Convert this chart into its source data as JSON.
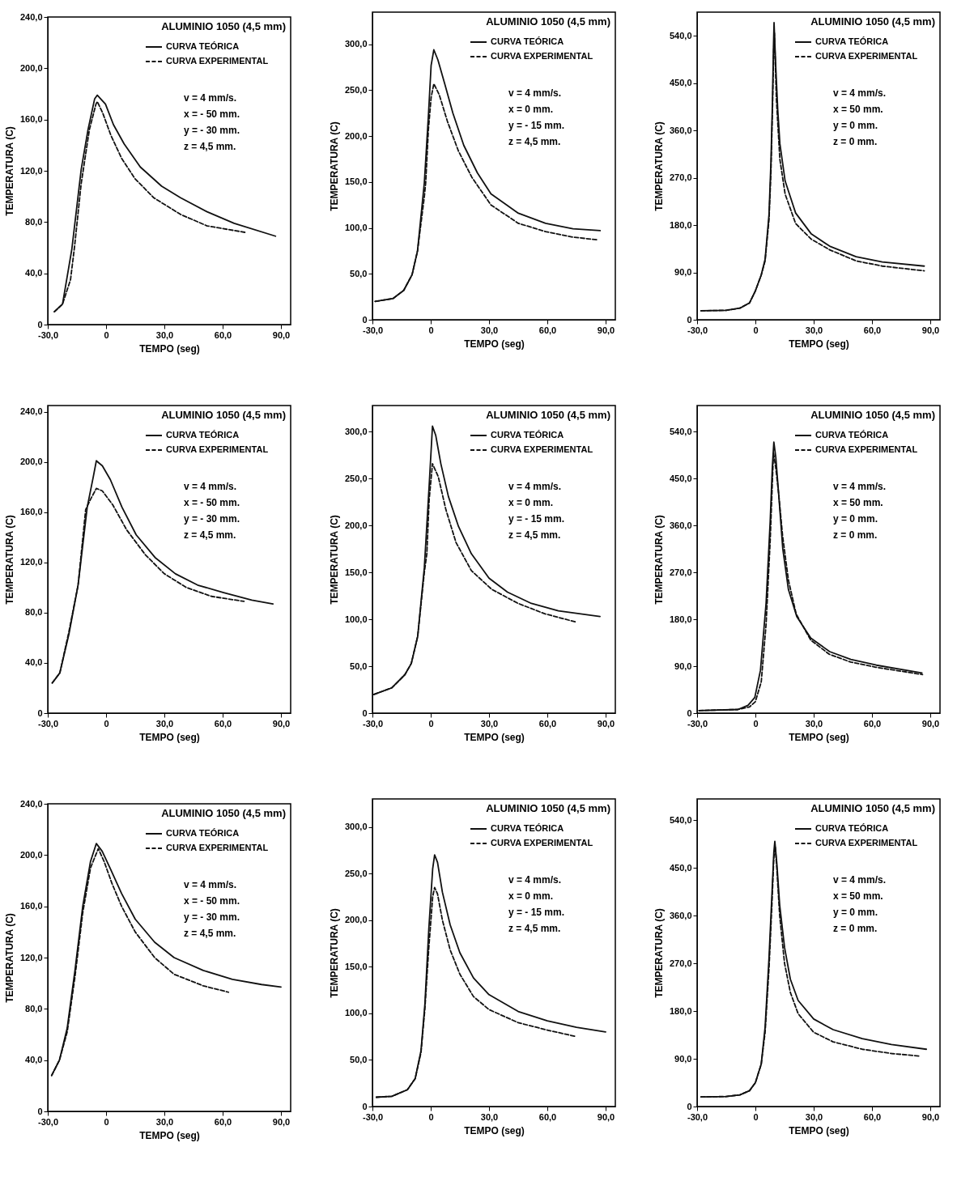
{
  "chart_data": [
    {
      "type": "line",
      "title": "ALUMINIO 1050 (4,5 mm)",
      "xlabel": "TEMPO (seg)",
      "ylabel": "TEMPERATURA (C)",
      "legend": "top right",
      "xlim": [
        -30,
        95
      ],
      "ylim": [
        0,
        240
      ],
      "xticks": [
        {
          "value": -30,
          "label": "-30,0"
        },
        {
          "value": 0,
          "label": "0"
        },
        {
          "value": 30,
          "label": "30,0"
        },
        {
          "value": 60,
          "label": "60,0"
        },
        {
          "value": 90,
          "label": "90,0"
        }
      ],
      "yticks": [
        {
          "value": 0,
          "label": "0"
        },
        {
          "value": 40,
          "label": "40,0"
        },
        {
          "value": 80,
          "label": "80,0"
        },
        {
          "value": 120,
          "label": "120,0"
        },
        {
          "value": 160,
          "label": "160,0"
        },
        {
          "value": 200,
          "label": "200,0"
        },
        {
          "value": 240,
          "label": "240,0"
        }
      ],
      "annotations": [
        "v = 4 mm/s.",
        "x = - 50 mm.",
        "y = - 30 mm.",
        "z = 4,5 mm."
      ],
      "series": [
        {
          "name": "CURVA TEÓRICA",
          "color": "#111111",
          "line_style": "solid",
          "x": [
            -26.6,
            -22.4,
            -17.6,
            -12.8,
            -9.3,
            -5.9,
            -4.5,
            -0.3,
            3.8,
            9.3,
            17.6,
            28.6,
            38.3,
            52,
            65.9,
            87.2
          ],
          "values": [
            10,
            16,
            59,
            121,
            152,
            176,
            179,
            172,
            156,
            141,
            123,
            108,
            99,
            88,
            79,
            69
          ]
        },
        {
          "name": "CURVA EXPERIMENTAL",
          "color": "#111111",
          "line_style": "dashed",
          "x": [
            -26.6,
            -22.4,
            -18.3,
            -16.2,
            -12.8,
            -8.6,
            -5.2,
            -4.5,
            -1.7,
            2.4,
            7.9,
            14.8,
            24.5,
            38.3,
            52,
            71.4
          ],
          "values": [
            10,
            16,
            35,
            61,
            110,
            152,
            172,
            174,
            165,
            148,
            130,
            114,
            99,
            86,
            77,
            72
          ]
        }
      ]
    },
    {
      "type": "line",
      "title": "ALUMINIO 1050 (4,5 mm)",
      "xlabel": "TEMPO (seg)",
      "ylabel": "TEMPERATURA (C)",
      "legend": "top right",
      "xlim": [
        -30,
        95
      ],
      "ylim": [
        0,
        335
      ],
      "xticks": [
        {
          "value": -30,
          "label": "-30,0"
        },
        {
          "value": 0,
          "label": "0"
        },
        {
          "value": 30,
          "label": "30,0"
        },
        {
          "value": 60,
          "label": "60,0"
        },
        {
          "value": 90,
          "label": "90,0"
        }
      ],
      "yticks": [
        {
          "value": 0,
          "label": "0"
        },
        {
          "value": 50,
          "label": "50,0"
        },
        {
          "value": 100,
          "label": "100,0"
        },
        {
          "value": 150,
          "label": "150,0"
        },
        {
          "value": 200,
          "label": "200,0"
        },
        {
          "value": 250,
          "label": "250,0"
        },
        {
          "value": 300,
          "label": "300,0"
        }
      ],
      "annotations": [
        "v = 4 mm/s.",
        "x = 0 mm.",
        "y = - 15 mm.",
        "z = 4,5 mm."
      ],
      "series": [
        {
          "name": "CURVA TEÓRICA",
          "color": "#111111",
          "line_style": "solid",
          "x": [
            -28.6,
            -19.5,
            -13.9,
            -9.6,
            -6.8,
            -3.3,
            -1.2,
            0.2,
            1.6,
            3.7,
            7.2,
            11.4,
            17,
            24,
            31,
            45.1,
            59.1,
            73.2,
            87.2
          ],
          "values": [
            20,
            23,
            32,
            49,
            75,
            149,
            222,
            277,
            294,
            283,
            257,
            225,
            190,
            160,
            137,
            116,
            105,
            99,
            97
          ]
        },
        {
          "name": "CURVA EXPERIMENTAL",
          "color": "#111111",
          "line_style": "dashed",
          "x": [
            -28.6,
            -19.5,
            -13.9,
            -9.6,
            -6.8,
            -3.3,
            -2.6,
            -1.2,
            0.2,
            1.6,
            4.4,
            8.6,
            14.2,
            21.2,
            31,
            45.1,
            59.1,
            73.2,
            85.8
          ],
          "values": [
            20,
            23,
            32,
            49,
            75,
            134,
            149,
            207,
            242,
            257,
            245,
            216,
            184,
            155,
            125,
            105,
            96,
            90,
            87
          ]
        }
      ]
    },
    {
      "type": "line",
      "title": "ALUMINIO 1050 (4,5 mm)",
      "xlabel": "TEMPO (seg)",
      "ylabel": "TEMPERATURA (C)",
      "legend": "top right",
      "xlim": [
        -30,
        95
      ],
      "ylim": [
        0,
        585
      ],
      "xticks": [
        {
          "value": -30,
          "label": "-30,0"
        },
        {
          "value": 0,
          "label": "0"
        },
        {
          "value": 30,
          "label": "30,0"
        },
        {
          "value": 60,
          "label": "60,0"
        },
        {
          "value": 90,
          "label": "90,0"
        }
      ],
      "yticks": [
        {
          "value": 0,
          "label": "0"
        },
        {
          "value": 90,
          "label": "90,0"
        },
        {
          "value": 180,
          "label": "180,0"
        },
        {
          "value": 270,
          "label": "270,0"
        },
        {
          "value": 360,
          "label": "360,0"
        },
        {
          "value": 450,
          "label": "450,0"
        },
        {
          "value": 540,
          "label": "540,0"
        }
      ],
      "annotations": [
        "v = 4 mm/s.",
        "x = 50 mm.",
        "y = 0 mm.",
        "z = 0 mm."
      ],
      "series": [
        {
          "name": "CURVA TEÓRICA",
          "color": "#111111",
          "line_style": "solid",
          "x": [
            -28,
            -15,
            -8,
            -3,
            0,
            3,
            5,
            7,
            8,
            8.8,
            9.3,
            9.6,
            10.5,
            11.5,
            12.6,
            15.3,
            20.7,
            28.8,
            38.2,
            51.8,
            65.3,
            86.9
          ],
          "values": [
            17,
            18,
            22,
            32,
            55,
            85,
            115,
            200,
            300,
            420,
            520,
            565,
            480,
            400,
            335,
            264,
            203,
            163,
            140,
            120,
            110,
            102
          ]
        },
        {
          "name": "CURVA EXPERIMENTAL",
          "color": "#111111",
          "line_style": "dashed",
          "x": [
            -28,
            -15,
            -8,
            -3,
            0,
            3,
            5,
            7,
            8,
            8.8,
            9.4,
            9.8,
            10.8,
            12.6,
            15.3,
            20.7,
            28.8,
            38.2,
            51.8,
            65.3,
            86.9
          ],
          "values": [
            17,
            18,
            22,
            32,
            55,
            85,
            112,
            190,
            280,
            400,
            510,
            545,
            420,
            305,
            239,
            183,
            153,
            133,
            112,
            102,
            93
          ]
        }
      ]
    },
    {
      "type": "line",
      "title": "ALUMINIO 1050 (4,5 mm)",
      "xlabel": "TEMPO (seg)",
      "ylabel": "TEMPERATURA (C)",
      "legend": "top right",
      "xlim": [
        -30,
        95
      ],
      "ylim": [
        0,
        245
      ],
      "xticks": [
        {
          "value": -30,
          "label": "-30,0"
        },
        {
          "value": 0,
          "label": "0"
        },
        {
          "value": 30,
          "label": "30,0"
        },
        {
          "value": 60,
          "label": "60,0"
        },
        {
          "value": 90,
          "label": "90,0"
        }
      ],
      "yticks": [
        {
          "value": 0,
          "label": "0"
        },
        {
          "value": 40,
          "label": "40,0"
        },
        {
          "value": 80,
          "label": "80,0"
        },
        {
          "value": 120,
          "label": "120,0"
        },
        {
          "value": 160,
          "label": "160,0"
        },
        {
          "value": 200,
          "label": "200,0"
        },
        {
          "value": 240,
          "label": "240,0"
        }
      ],
      "annotations": [
        "v = 4 mm/s.",
        "x = - 50 mm.",
        "y = - 30 mm.",
        "z = 4,5 mm."
      ],
      "series": [
        {
          "name": "CURVA TEÓRICA",
          "color": "#111111",
          "line_style": "solid",
          "x": [
            -27.7,
            -23.8,
            -19.1,
            -14.4,
            -9.7,
            -6.6,
            -5,
            -1.9,
            2.2,
            8.2,
            15.5,
            25.2,
            35.7,
            47.1,
            60.5,
            75,
            85.9
          ],
          "values": [
            24,
            32,
            63,
            102,
            164,
            188,
            201,
            197,
            186,
            164,
            142,
            124,
            111,
            102,
            96,
            90,
            87
          ]
        },
        {
          "name": "CURVA EXPERIMENTAL",
          "color": "#111111",
          "line_style": "dashed",
          "x": [
            -27.7,
            -23.8,
            -19.1,
            -14.4,
            -10.5,
            -8.1,
            -5,
            -1.9,
            3.4,
            10.6,
            20.3,
            30,
            41.4,
            54.3,
            71
          ],
          "values": [
            24,
            32,
            65,
            102,
            162,
            170,
            179,
            177,
            166,
            146,
            126,
            111,
            100,
            93,
            89
          ]
        }
      ]
    },
    {
      "type": "line",
      "title": "ALUMINIO 1050 (4,5 mm)",
      "xlabel": "TEMPO (seg)",
      "ylabel": "TEMPERATURA (C)",
      "legend": "top right",
      "xlim": [
        -30,
        95
      ],
      "ylim": [
        0,
        328
      ],
      "xticks": [
        {
          "value": -30,
          "label": "-30,0"
        },
        {
          "value": 0,
          "label": "0"
        },
        {
          "value": 30,
          "label": "30,0"
        },
        {
          "value": 60,
          "label": "60,0"
        },
        {
          "value": 90,
          "label": "90,0"
        }
      ],
      "yticks": [
        {
          "value": 0,
          "label": "0"
        },
        {
          "value": 50,
          "label": "50,0"
        },
        {
          "value": 100,
          "label": "100,0"
        },
        {
          "value": 150,
          "label": "150,0"
        },
        {
          "value": 200,
          "label": "200,0"
        },
        {
          "value": 250,
          "label": "250,0"
        },
        {
          "value": 300,
          "label": "300,0"
        }
      ],
      "annotations": [
        "v = 4 mm/s.",
        "x = 0 mm.",
        "y = - 15 mm.",
        "z = 4,5 mm."
      ],
      "series": [
        {
          "name": "CURVA TEÓRICA",
          "color": "#111111",
          "line_style": "solid",
          "x": [
            -29.2,
            -20,
            -13.3,
            -10,
            -6.7,
            -3.3,
            -0.8,
            0.9,
            2.6,
            5.2,
            9.1,
            14.3,
            20.9,
            30,
            39.5,
            51.8,
            65.7,
            87.1
          ],
          "values": [
            20,
            27,
            41,
            53,
            82,
            155,
            243,
            306,
            296,
            266,
            231,
            199,
            170,
            144,
            129,
            117,
            109,
            103
          ]
        },
        {
          "name": "CURVA EXPERIMENTAL",
          "color": "#111111",
          "line_style": "dashed",
          "x": [
            -29.2,
            -20,
            -13.3,
            -10,
            -6.7,
            -3.3,
            -2,
            -0.8,
            0.9,
            3.9,
            7.8,
            13,
            20.9,
            31.4,
            45,
            58.6,
            75
          ],
          "values": [
            20,
            27,
            41,
            53,
            82,
            150,
            170,
            228,
            266,
            252,
            217,
            182,
            152,
            132,
            117,
            106,
            97
          ]
        }
      ]
    },
    {
      "type": "line",
      "title": "ALUMINIO 1050 (4,5 mm)",
      "xlabel": "TEMPO (seg)",
      "ylabel": "TEMPERATURA (C)",
      "legend": "top right",
      "xlim": [
        -30,
        95
      ],
      "ylim": [
        0,
        590
      ],
      "xticks": [
        {
          "value": -30,
          "label": "-30,0"
        },
        {
          "value": 0,
          "label": "0"
        },
        {
          "value": 30,
          "label": "30,0"
        },
        {
          "value": 60,
          "label": "60,0"
        },
        {
          "value": 90,
          "label": "90,0"
        }
      ],
      "yticks": [
        {
          "value": 0,
          "label": "0"
        },
        {
          "value": 90,
          "label": "90,0"
        },
        {
          "value": 180,
          "label": "180,0"
        },
        {
          "value": 270,
          "label": "270,0"
        },
        {
          "value": 360,
          "label": "360,0"
        },
        {
          "value": 450,
          "label": "450,0"
        },
        {
          "value": 540,
          "label": "540,0"
        }
      ],
      "annotations": [
        "v = 4 mm/s.",
        "x = 50 mm.",
        "y = 0 mm.",
        "z = 0 mm."
      ],
      "series": [
        {
          "name": "CURVA TEÓRICA",
          "color": "#111111",
          "line_style": "solid",
          "x": [
            -29,
            -9,
            -3.8,
            -0.3,
            2.6,
            5.5,
            7.6,
            8.7,
            9.5,
            10.5,
            12,
            14.1,
            17,
            21.3,
            28.5,
            38.2,
            49.1,
            62.3,
            85.7
          ],
          "values": [
            5,
            7,
            15,
            30,
            82,
            211,
            367,
            471,
            520,
            491,
            419,
            315,
            237,
            185,
            144,
            118,
            103,
            92,
            77
          ]
        },
        {
          "name": "CURVA EXPERIMENTAL",
          "color": "#111111",
          "line_style": "dashed",
          "x": [
            -29,
            -9,
            -3,
            0,
            3,
            5.5,
            7.6,
            8.7,
            9.3,
            10.5,
            12,
            14,
            17,
            21,
            28.5,
            38,
            49,
            62,
            86
          ],
          "values": [
            5,
            7,
            12,
            22,
            60,
            170,
            330,
            440,
            500,
            470,
            420,
            340,
            255,
            190,
            140,
            113,
            98,
            88,
            74
          ]
        }
      ]
    },
    {
      "type": "line",
      "title": "ALUMINIO 1050 (4,5 mm)",
      "xlabel": "TEMPO (seg)",
      "ylabel": "TEMPERATURA (C)",
      "legend": "top right",
      "xlim": [
        -30,
        95
      ],
      "ylim": [
        0,
        240
      ],
      "xticks": [
        {
          "value": -30,
          "label": "-30,0"
        },
        {
          "value": 0,
          "label": "0"
        },
        {
          "value": 30,
          "label": "30,0"
        },
        {
          "value": 60,
          "label": "60,0"
        },
        {
          "value": 90,
          "label": "90,0"
        }
      ],
      "yticks": [
        {
          "value": 0,
          "label": "0"
        },
        {
          "value": 40,
          "label": "40,0"
        },
        {
          "value": 80,
          "label": "80,0"
        },
        {
          "value": 120,
          "label": "120,0"
        },
        {
          "value": 160,
          "label": "160,0"
        },
        {
          "value": 200,
          "label": "200,0"
        },
        {
          "value": 240,
          "label": "240,0"
        }
      ],
      "annotations": [
        "v = 4 mm/s.",
        "x = - 50 mm.",
        "y = - 30 mm.",
        "z = 4,5 mm."
      ],
      "series": [
        {
          "name": "CURVA TEÓRICA",
          "color": "#111111",
          "line_style": "solid",
          "x": [
            -28,
            -24,
            -20,
            -16,
            -12,
            -8,
            -5,
            -2,
            2,
            8,
            15,
            25,
            35,
            50,
            65,
            80,
            90
          ],
          "values": [
            28,
            40,
            65,
            110,
            160,
            195,
            209,
            203,
            190,
            170,
            150,
            132,
            120,
            110,
            103,
            99,
            97
          ]
        },
        {
          "name": "CURVA EXPERIMENTAL",
          "color": "#111111",
          "line_style": "dashed",
          "x": [
            -28,
            -24,
            -20,
            -16,
            -12,
            -8,
            -4,
            -1,
            3,
            8,
            15,
            25,
            35,
            50,
            63
          ],
          "values": [
            28,
            40,
            62,
            105,
            155,
            190,
            205,
            195,
            178,
            160,
            140,
            120,
            107,
            98,
            93
          ]
        }
      ]
    },
    {
      "type": "line",
      "title": "ALUMINIO 1050 (4,5 mm)",
      "xlabel": "TEMPO (seg)",
      "ylabel": "TEMPERATURA (C)",
      "legend": "top right",
      "xlim": [
        -30,
        95
      ],
      "ylim": [
        0,
        330
      ],
      "xticks": [
        {
          "value": -30,
          "label": "-30,0"
        },
        {
          "value": 0,
          "label": "0"
        },
        {
          "value": 30,
          "label": "30,0"
        },
        {
          "value": 60,
          "label": "60,0"
        },
        {
          "value": 90,
          "label": "90,0"
        }
      ],
      "yticks": [
        {
          "value": 0,
          "label": "0"
        },
        {
          "value": 50,
          "label": "50,0"
        },
        {
          "value": 100,
          "label": "100,0"
        },
        {
          "value": 150,
          "label": "150,0"
        },
        {
          "value": 200,
          "label": "200,0"
        },
        {
          "value": 250,
          "label": "250,0"
        },
        {
          "value": 300,
          "label": "300,0"
        }
      ],
      "annotations": [
        "v = 4 mm/s.",
        "x = 0 mm.",
        "y = - 15 mm.",
        "z = 4,5 mm."
      ],
      "series": [
        {
          "name": "CURVA TEÓRICA",
          "color": "#111111",
          "line_style": "solid",
          "x": [
            -28,
            -20,
            -12,
            -8,
            -5,
            -3,
            -1,
            1,
            2,
            3.5,
            6,
            10,
            15,
            22,
            30,
            45,
            60,
            75,
            90
          ],
          "values": [
            10,
            11,
            18,
            30,
            60,
            110,
            190,
            255,
            270,
            262,
            230,
            195,
            165,
            138,
            120,
            102,
            92,
            85,
            80
          ]
        },
        {
          "name": "CURVA EXPERIMENTAL",
          "color": "#111111",
          "line_style": "dashed",
          "x": [
            -28,
            -20,
            -12,
            -8,
            -5,
            -3,
            -1,
            1,
            2,
            3.5,
            6,
            10,
            15,
            22,
            30,
            45,
            60,
            75
          ],
          "values": [
            10,
            11,
            18,
            30,
            58,
            105,
            170,
            225,
            235,
            228,
            200,
            168,
            142,
            118,
            104,
            90,
            82,
            75
          ]
        }
      ]
    },
    {
      "type": "line",
      "title": "ALUMINIO 1050 (4,5 mm)",
      "xlabel": "TEMPO (seg)",
      "ylabel": "TEMPERATURA (C)",
      "legend": "top right",
      "xlim": [
        -30,
        95
      ],
      "ylim": [
        0,
        580
      ],
      "xticks": [
        {
          "value": -30,
          "label": "-30,0"
        },
        {
          "value": 0,
          "label": "0"
        },
        {
          "value": 30,
          "label": "30,0"
        },
        {
          "value": 60,
          "label": "60,0"
        },
        {
          "value": 90,
          "label": "90,0"
        }
      ],
      "yticks": [
        {
          "value": 0,
          "label": "0"
        },
        {
          "value": 90,
          "label": "90,0"
        },
        {
          "value": 180,
          "label": "180,0"
        },
        {
          "value": 270,
          "label": "270,0"
        },
        {
          "value": 360,
          "label": "360,0"
        },
        {
          "value": 450,
          "label": "450,0"
        },
        {
          "value": 540,
          "label": "540,0"
        }
      ],
      "annotations": [
        "v = 4 mm/s.",
        "x = 50 mm.",
        "y = 0 mm.",
        "z = 0 mm."
      ],
      "series": [
        {
          "name": "CURVA TEÓRICA",
          "color": "#111111",
          "line_style": "solid",
          "x": [
            -28,
            -15,
            -8,
            -3,
            0,
            3,
            5,
            7,
            8.5,
            9.5,
            10,
            11,
            12.5,
            15,
            18,
            22,
            30,
            40,
            55,
            70,
            88
          ],
          "values": [
            18,
            19,
            22,
            30,
            45,
            80,
            150,
            280,
            400,
            480,
            500,
            460,
            380,
            300,
            240,
            200,
            165,
            145,
            128,
            117,
            108
          ]
        },
        {
          "name": "CURVA EXPERIMENTAL",
          "color": "#111111",
          "line_style": "dashed",
          "x": [
            -28,
            -15,
            -8,
            -3,
            0,
            3,
            5,
            7,
            8.5,
            9.5,
            10.2,
            11,
            12.5,
            15,
            18,
            22,
            30,
            40,
            55,
            70,
            85
          ],
          "values": [
            18,
            19,
            22,
            30,
            45,
            80,
            140,
            260,
            380,
            470,
            490,
            450,
            360,
            270,
            215,
            175,
            140,
            122,
            108,
            100,
            95
          ]
        }
      ]
    }
  ]
}
